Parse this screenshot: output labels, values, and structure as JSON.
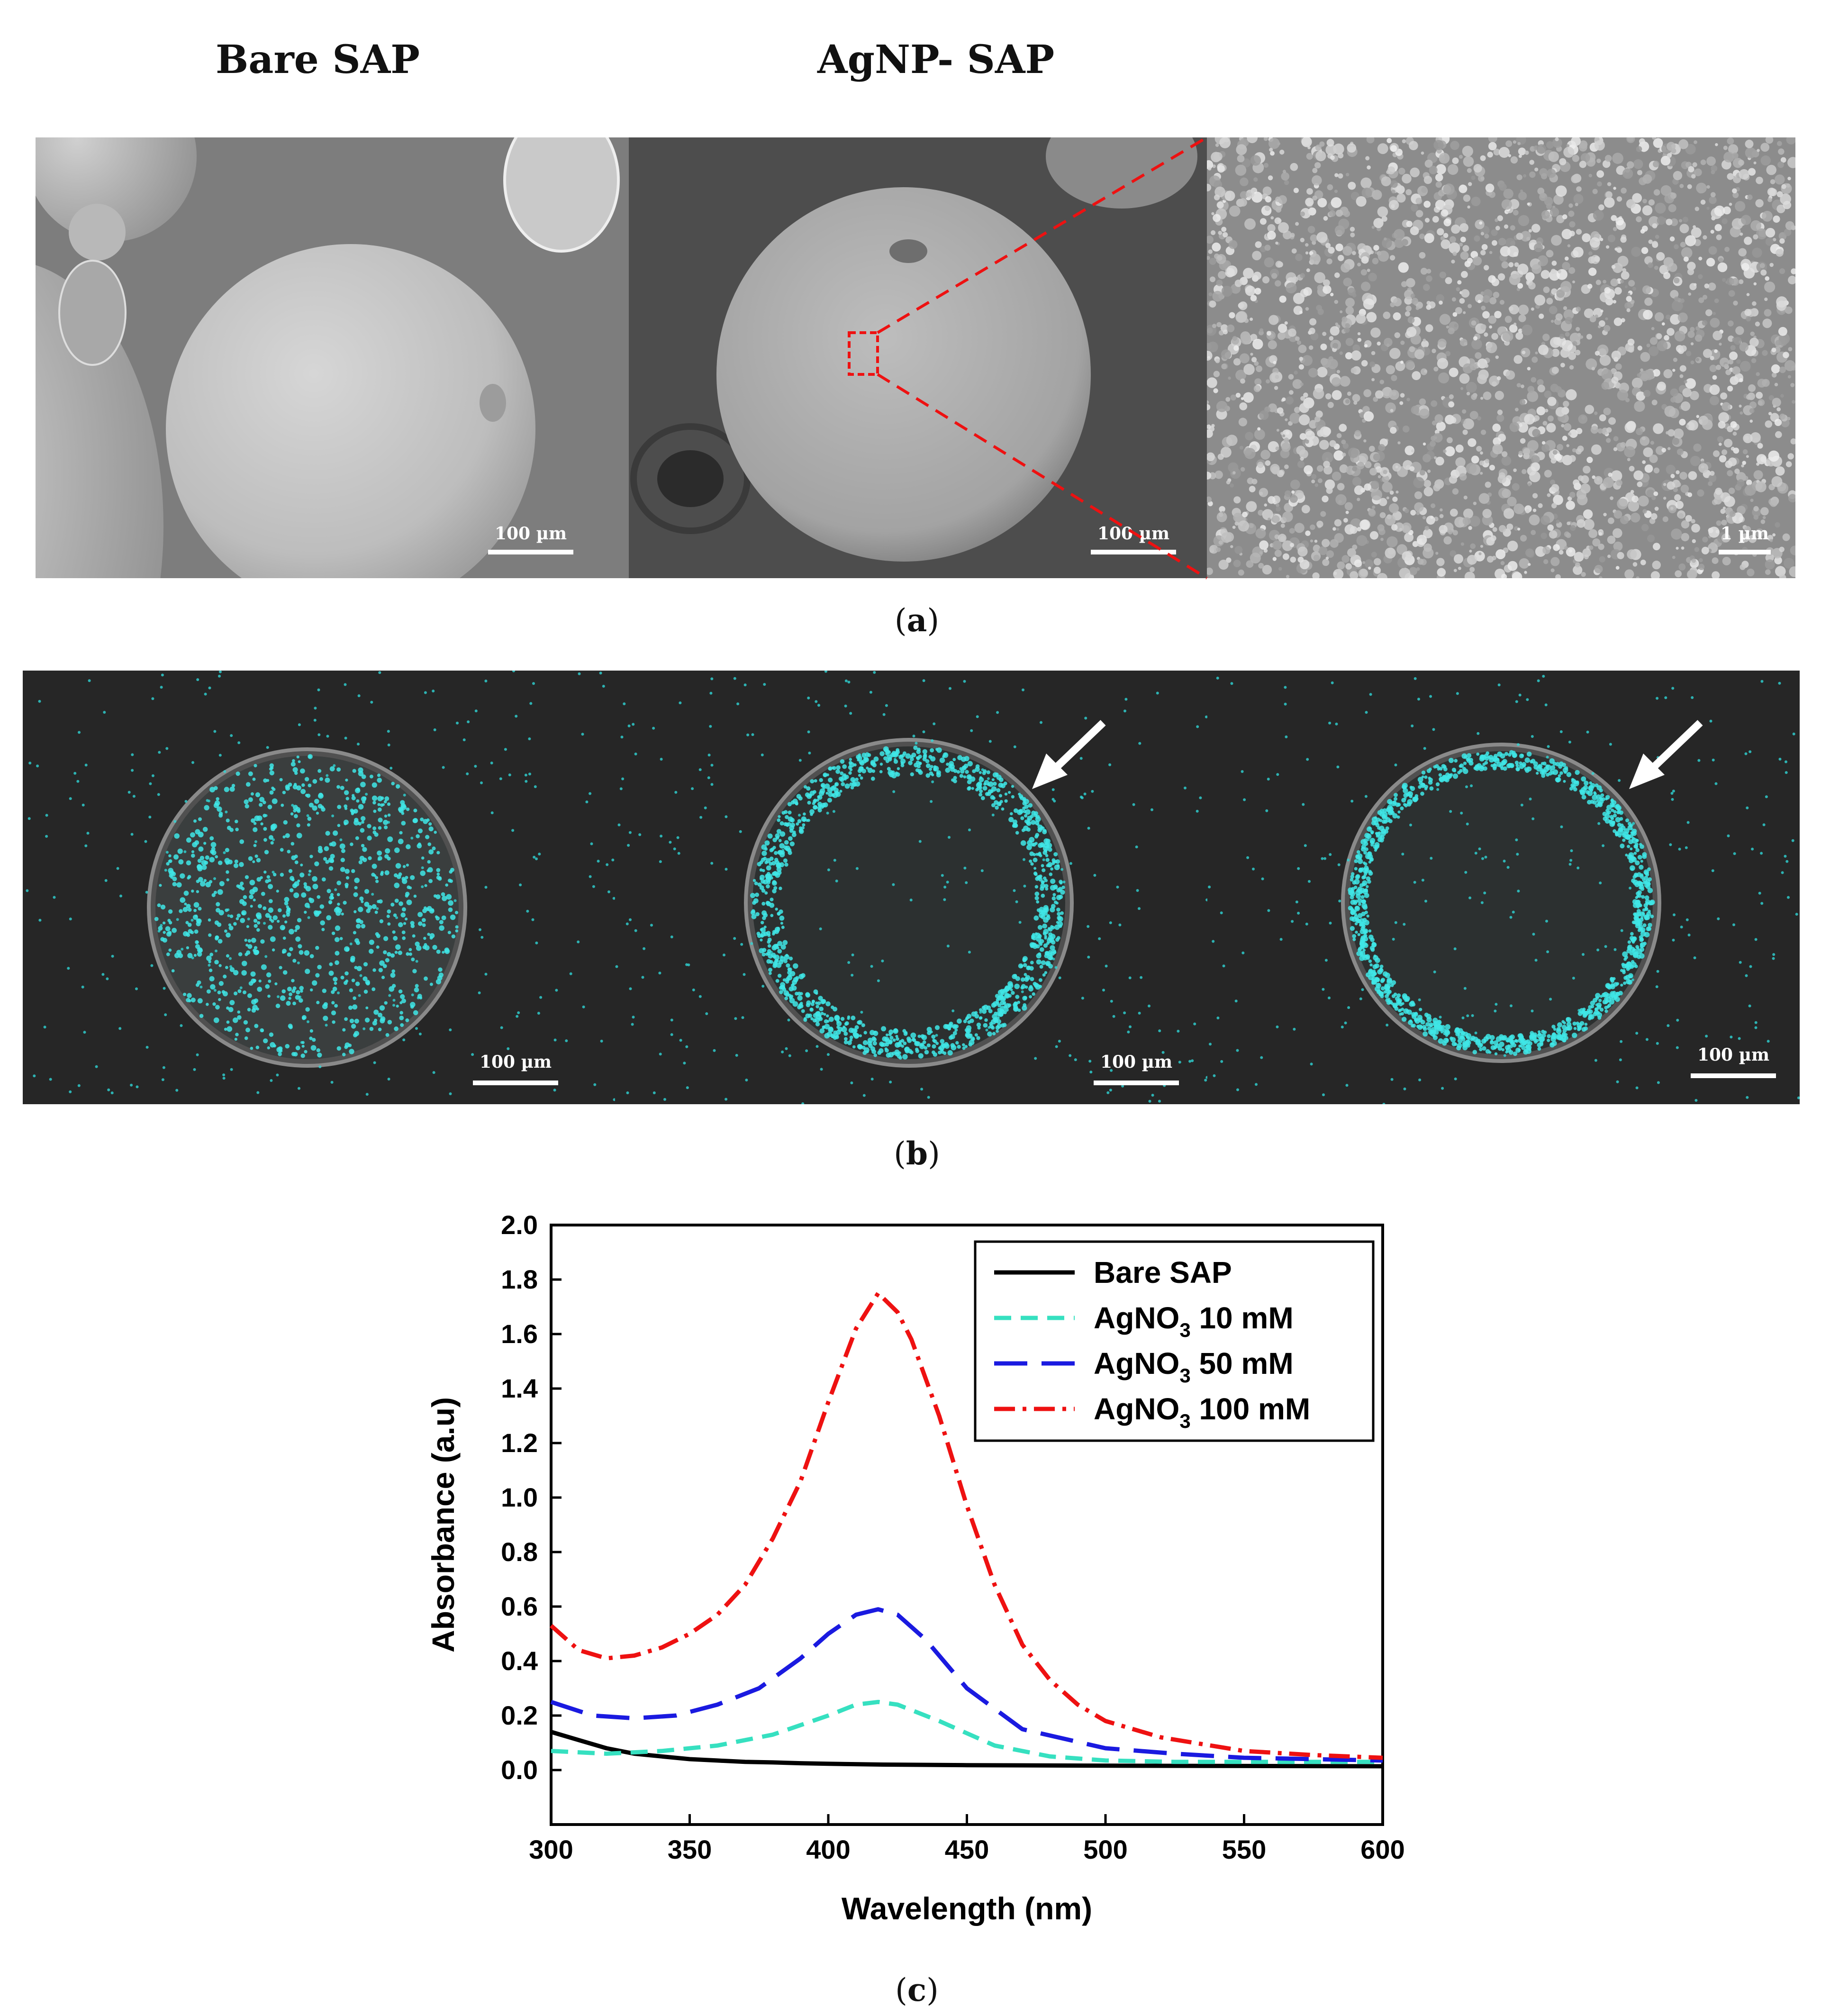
{
  "figure": {
    "header_left": "Bare SAP",
    "header_mid": "AgNP- SAP",
    "caption_a": "a",
    "caption_b": "b",
    "caption_c": "c",
    "panel_a_scales": [
      "100 µm",
      "100 µm",
      "1 µm"
    ],
    "panel_b_scales": [
      "100 µm",
      "100 µm",
      "100 µm"
    ]
  },
  "chart_data": {
    "type": "line",
    "xlabel": "Wavelength (nm)",
    "ylabel": "Absorbance (a.u)",
    "xlim": [
      300,
      600
    ],
    "ylim": [
      -0.2,
      2.0
    ],
    "x_ticks": [
      "300",
      "350",
      "400",
      "450",
      "500",
      "550",
      "600"
    ],
    "y_ticks": [
      "0.0",
      "0.2",
      "0.4",
      "0.6",
      "0.8",
      "1.0",
      "1.2",
      "1.4",
      "1.6",
      "1.8",
      "2.0"
    ],
    "legend_position": "top-right",
    "series": [
      {
        "name": "Bare SAP",
        "legend_main": "Bare SAP",
        "legend_sub": "",
        "legend_tail": "",
        "color": "#000000",
        "dash": "",
        "x": [
          300,
          310,
          320,
          330,
          340,
          350,
          360,
          370,
          380,
          390,
          400,
          420,
          450,
          500,
          550,
          600
        ],
        "y": [
          0.14,
          0.11,
          0.08,
          0.06,
          0.05,
          0.04,
          0.035,
          0.03,
          0.028,
          0.025,
          0.023,
          0.02,
          0.018,
          0.016,
          0.015,
          0.014
        ]
      },
      {
        "name": "AgNO3 10 mM",
        "legend_main": "AgNO",
        "legend_sub": "3",
        "legend_tail": " 10 mM",
        "color": "#36e0c0",
        "dash": "36,20",
        "x": [
          300,
          320,
          340,
          360,
          380,
          400,
          410,
          418,
          425,
          440,
          460,
          480,
          500,
          525,
          550,
          575,
          600
        ],
        "y": [
          0.07,
          0.06,
          0.07,
          0.09,
          0.13,
          0.2,
          0.24,
          0.25,
          0.24,
          0.18,
          0.09,
          0.05,
          0.035,
          0.03,
          0.03,
          0.03,
          0.03
        ]
      },
      {
        "name": "AgNO3 50 mM",
        "legend_main": "AgNO",
        "legend_sub": "3",
        "legend_tail": " 50 mM",
        "color": "#1a1ae0",
        "dash": "70,30",
        "x": [
          300,
          315,
          330,
          345,
          360,
          375,
          390,
          400,
          410,
          418,
          425,
          435,
          450,
          470,
          500,
          525,
          550,
          575,
          600
        ],
        "y": [
          0.25,
          0.2,
          0.19,
          0.2,
          0.24,
          0.3,
          0.41,
          0.5,
          0.57,
          0.59,
          0.57,
          0.48,
          0.3,
          0.15,
          0.08,
          0.06,
          0.045,
          0.04,
          0.035
        ]
      },
      {
        "name": "AgNO3 100 mM",
        "legend_main": "AgNO",
        "legend_sub": "3",
        "legend_tail": " 100 mM",
        "color": "#ee1111",
        "dash": "44,16,8,16",
        "x": [
          300,
          310,
          320,
          330,
          340,
          350,
          360,
          370,
          380,
          390,
          400,
          410,
          418,
          425,
          430,
          440,
          450,
          460,
          470,
          480,
          490,
          500,
          520,
          550,
          575,
          600
        ],
        "y": [
          0.53,
          0.44,
          0.41,
          0.42,
          0.45,
          0.5,
          0.57,
          0.68,
          0.85,
          1.06,
          1.35,
          1.62,
          1.75,
          1.68,
          1.58,
          1.3,
          0.97,
          0.68,
          0.46,
          0.33,
          0.24,
          0.18,
          0.12,
          0.07,
          0.055,
          0.045
        ]
      }
    ]
  }
}
